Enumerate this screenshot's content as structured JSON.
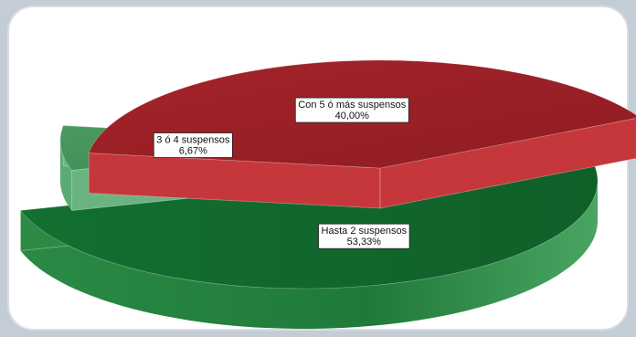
{
  "chart_data": {
    "type": "pie",
    "style": "3d-exploded",
    "title": "",
    "slices": [
      {
        "label": "Hasta 2 suspensos",
        "value": 53.33,
        "value_label": "53,33%",
        "color": "#146b2f"
      },
      {
        "label": "3 ó 4 suspensos",
        "value": 6.67,
        "value_label": "6,67%",
        "color": "#5aa873"
      },
      {
        "label": "Con 5 ó más suspensos",
        "value": 40.0,
        "value_label": "40,00%",
        "color": "#a8262b"
      }
    ],
    "legend": "none"
  }
}
